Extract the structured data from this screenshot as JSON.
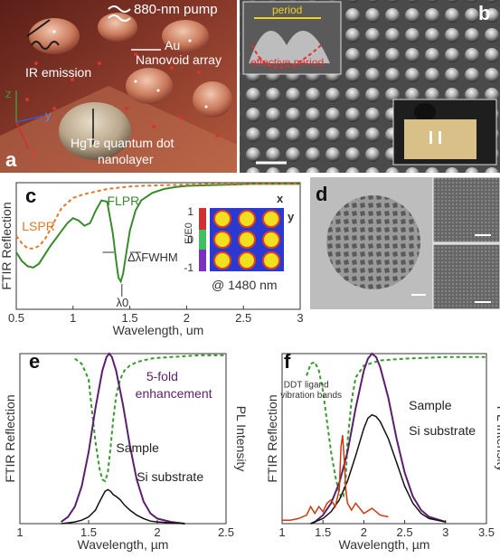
{
  "panels": {
    "a": {
      "label": "a",
      "labels": {
        "pump": "880-nm pump",
        "au": "Au",
        "array": "Nanovoid array",
        "ir": "IR emission",
        "qd1": "HgTe quantum dot",
        "qd2": "nanolayer",
        "axis_x": "x",
        "axis_y": "y",
        "axis_z": "z"
      }
    },
    "b": {
      "label": "b",
      "labels": {
        "period": "period",
        "effective_period": "effective period"
      }
    },
    "d": {
      "label": "d"
    }
  },
  "colors": {
    "flpr": "#3a8a2e",
    "lspr": "#e07a2a",
    "ftir_dashed": "#3a9a2e",
    "pl_purple": "#5c1f6e",
    "black": "#111111",
    "red_ftir": "#cc3a10"
  },
  "chart_data": [
    {
      "panel": "c",
      "type": "line",
      "xlabel": "Wavelength, um",
      "ylabel": "FTIR Reflection",
      "xlim": [
        0.5,
        3
      ],
      "xticks": [
        "0.5",
        "1",
        "1.5",
        "2",
        "2.5",
        "3"
      ],
      "ylim": [
        0,
        1
      ],
      "labels": {
        "panel": "c",
        "flpr": "FLPR",
        "lspr": "LSPR",
        "delta": "ΔλFWHM",
        "lambda0": "λ0",
        "at": "@ 1480 nm",
        "inset_x": "x",
        "inset_y": "y",
        "colorbar_label": "E/E0",
        "cb_top": "1",
        "cb_mid": "0",
        "cb_bot": "-1"
      },
      "series": [
        {
          "name": "FLPR",
          "style": "solid",
          "x": [
            0.5,
            0.55,
            0.6,
            0.65,
            0.7,
            0.75,
            0.8,
            0.85,
            0.9,
            0.95,
            1.0,
            1.05,
            1.1,
            1.15,
            1.2,
            1.25,
            1.3,
            1.35,
            1.38,
            1.4,
            1.42,
            1.44,
            1.47,
            1.5,
            1.55,
            1.6,
            1.7,
            1.8,
            1.9,
            2.0,
            2.2,
            2.4,
            2.6,
            2.8,
            3.0
          ],
          "y": [
            0.45,
            0.38,
            0.34,
            0.33,
            0.36,
            0.43,
            0.5,
            0.56,
            0.62,
            0.68,
            0.72,
            0.7,
            0.66,
            0.68,
            0.78,
            0.86,
            0.85,
            0.6,
            0.38,
            0.25,
            0.22,
            0.28,
            0.45,
            0.62,
            0.78,
            0.86,
            0.92,
            0.95,
            0.965,
            0.975,
            0.98,
            0.985,
            0.99,
            0.99,
            0.99
          ]
        },
        {
          "name": "LSPR",
          "style": "dashed",
          "x": [
            0.5,
            0.55,
            0.6,
            0.65,
            0.7,
            0.75,
            0.8,
            0.85,
            0.9,
            1.0,
            1.1,
            1.2,
            1.3,
            1.4,
            1.5,
            1.6,
            1.8,
            2.0,
            2.2,
            2.5,
            3.0
          ],
          "y": [
            0.58,
            0.52,
            0.48,
            0.48,
            0.5,
            0.55,
            0.63,
            0.72,
            0.8,
            0.88,
            0.91,
            0.93,
            0.95,
            0.96,
            0.97,
            0.975,
            0.98,
            0.985,
            0.99,
            0.99,
            0.99
          ]
        }
      ]
    },
    {
      "panel": "e",
      "type": "line",
      "xlabel": "Wavelength, µm",
      "ylabel": "FTIR Reflection",
      "ylabel_right": "PL Intensity",
      "xlim": [
        1,
        2.5
      ],
      "xticks": [
        "1",
        "1.5",
        "2",
        "2.5"
      ],
      "ylim": [
        0,
        1
      ],
      "labels": {
        "panel": "e",
        "enh1": "5-fold",
        "enh2": "enhancement",
        "sample": "Sample",
        "si": "Si substrate"
      },
      "series": [
        {
          "name": "FTIR",
          "style": "dashed",
          "x": [
            1.4,
            1.45,
            1.5,
            1.52,
            1.55,
            1.58,
            1.6,
            1.62,
            1.64,
            1.66,
            1.68,
            1.7,
            1.73,
            1.76,
            1.8,
            1.85,
            1.9,
            1.95,
            2.0,
            2.1,
            2.2,
            2.3,
            2.5
          ],
          "y": [
            0.97,
            0.94,
            0.85,
            0.7,
            0.48,
            0.32,
            0.26,
            0.25,
            0.3,
            0.45,
            0.62,
            0.75,
            0.85,
            0.9,
            0.93,
            0.95,
            0.96,
            0.97,
            0.975,
            0.98,
            0.985,
            0.99,
            0.99
          ]
        },
        {
          "name": "Sample",
          "style": "solid",
          "x": [
            1.3,
            1.35,
            1.4,
            1.45,
            1.5,
            1.55,
            1.6,
            1.63,
            1.65,
            1.67,
            1.7,
            1.75,
            1.8,
            1.85,
            1.9,
            1.95,
            2.0,
            2.1,
            2.2
          ],
          "y": [
            0.01,
            0.04,
            0.1,
            0.22,
            0.42,
            0.68,
            0.9,
            0.98,
            1.0,
            0.98,
            0.9,
            0.7,
            0.46,
            0.26,
            0.13,
            0.06,
            0.03,
            0.01,
            0.0
          ]
        },
        {
          "name": "Si substrate",
          "style": "solid",
          "x": [
            1.3,
            1.35,
            1.4,
            1.45,
            1.5,
            1.55,
            1.58,
            1.6,
            1.62,
            1.64,
            1.66,
            1.68,
            1.7,
            1.73,
            1.76,
            1.8,
            1.85,
            1.9,
            1.95,
            2.0,
            2.1,
            2.2
          ],
          "y": [
            0.0,
            0.005,
            0.01,
            0.02,
            0.04,
            0.08,
            0.13,
            0.16,
            0.19,
            0.2,
            0.19,
            0.17,
            0.16,
            0.14,
            0.11,
            0.08,
            0.05,
            0.03,
            0.015,
            0.01,
            0.005,
            0.0
          ]
        }
      ]
    },
    {
      "panel": "f",
      "type": "line",
      "xlabel": "Wavelength, µm",
      "ylabel": "FTIR Reflection",
      "ylabel_right": "PL Intensity",
      "xlim": [
        1,
        3.5
      ],
      "xticks": [
        "1",
        "1.5",
        "2",
        "2.5",
        "3",
        "3.5"
      ],
      "ylim": [
        0,
        1
      ],
      "labels": {
        "panel": "f",
        "ddt1": "DDT ligand",
        "ddt2": "vibration bands",
        "sample": "Sample",
        "si": "Si substrate"
      },
      "series": [
        {
          "name": "FTIR",
          "style": "dashed",
          "x": [
            1.3,
            1.35,
            1.4,
            1.45,
            1.5,
            1.55,
            1.6,
            1.65,
            1.7,
            1.73,
            1.75,
            1.78,
            1.8,
            1.85,
            1.9,
            2.0,
            2.2,
            2.5,
            3.0,
            3.5
          ],
          "y": [
            0.87,
            0.94,
            0.95,
            0.9,
            0.78,
            0.6,
            0.42,
            0.28,
            0.18,
            0.15,
            0.16,
            0.28,
            0.48,
            0.72,
            0.86,
            0.93,
            0.96,
            0.97,
            0.98,
            0.98
          ]
        },
        {
          "name": "Sample",
          "style": "solid",
          "x": [
            1.35,
            1.4,
            1.45,
            1.5,
            1.6,
            1.7,
            1.8,
            1.9,
            2.0,
            2.05,
            2.1,
            2.15,
            2.2,
            2.3,
            2.4,
            2.5,
            2.6,
            2.7,
            2.8,
            3.0
          ],
          "y": [
            0.0,
            0.01,
            0.03,
            0.05,
            0.12,
            0.24,
            0.42,
            0.68,
            0.9,
            0.97,
            1.0,
            0.98,
            0.92,
            0.74,
            0.5,
            0.3,
            0.16,
            0.08,
            0.04,
            0.01
          ]
        },
        {
          "name": "Si substrate",
          "style": "solid",
          "x": [
            1.35,
            1.4,
            1.5,
            1.6,
            1.7,
            1.8,
            1.9,
            2.0,
            2.05,
            2.1,
            2.15,
            2.2,
            2.3,
            2.4,
            2.5,
            2.6,
            2.7,
            2.8,
            3.0
          ],
          "y": [
            0.0,
            0.01,
            0.03,
            0.07,
            0.14,
            0.25,
            0.4,
            0.56,
            0.62,
            0.64,
            0.63,
            0.6,
            0.5,
            0.36,
            0.22,
            0.12,
            0.06,
            0.03,
            0.01
          ]
        },
        {
          "name": "FTIR raw",
          "style": "solid",
          "x": [
            1.0,
            1.1,
            1.2,
            1.3,
            1.35,
            1.4,
            1.45,
            1.5,
            1.55,
            1.6,
            1.65,
            1.7,
            1.72,
            1.74,
            1.76,
            1.78,
            1.8,
            1.85,
            1.9,
            2.0,
            2.1,
            2.2,
            2.3
          ],
          "y": [
            0.02,
            0.02,
            0.03,
            0.05,
            0.1,
            0.06,
            0.1,
            0.07,
            0.12,
            0.14,
            0.1,
            0.2,
            0.45,
            0.52,
            0.38,
            0.2,
            0.12,
            0.08,
            0.12,
            0.06,
            0.09,
            0.05,
            0.04
          ]
        }
      ]
    }
  ]
}
